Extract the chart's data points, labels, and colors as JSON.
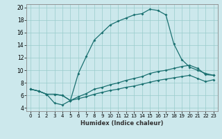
{
  "xlabel": "Humidex (Indice chaleur)",
  "bg_color": "#cce8ec",
  "grid_color": "#99cccc",
  "line_color": "#1a7070",
  "xlim": [
    -0.5,
    23.5
  ],
  "ylim": [
    3.5,
    20.5
  ],
  "xticks": [
    0,
    1,
    2,
    3,
    4,
    5,
    6,
    7,
    8,
    9,
    10,
    11,
    12,
    13,
    14,
    15,
    16,
    17,
    18,
    19,
    20,
    21,
    22,
    23
  ],
  "yticks": [
    4,
    6,
    8,
    10,
    12,
    14,
    16,
    18,
    20
  ],
  "line1_x": [
    0,
    1,
    2,
    3,
    4,
    5,
    6,
    7,
    8,
    9,
    10,
    11,
    12,
    13,
    14,
    15,
    16,
    17,
    18,
    19,
    20,
    21,
    22,
    23
  ],
  "line1_y": [
    7.0,
    6.7,
    6.2,
    4.8,
    4.5,
    5.2,
    9.5,
    12.2,
    14.8,
    16.0,
    17.2,
    17.8,
    18.3,
    18.8,
    19.0,
    19.7,
    19.5,
    18.8,
    14.2,
    11.7,
    10.5,
    10.0,
    9.5,
    9.2
  ],
  "line2_x": [
    0,
    1,
    2,
    3,
    4,
    5,
    6,
    7,
    8,
    9,
    10,
    11,
    12,
    13,
    14,
    15,
    16,
    17,
    18,
    19,
    20,
    21,
    22,
    23
  ],
  "line2_y": [
    7.0,
    6.7,
    6.2,
    6.2,
    6.0,
    5.2,
    5.8,
    6.3,
    7.0,
    7.3,
    7.7,
    8.0,
    8.4,
    8.7,
    9.0,
    9.5,
    9.8,
    10.0,
    10.3,
    10.6,
    10.8,
    10.3,
    9.3,
    9.2
  ],
  "line3_x": [
    0,
    1,
    2,
    3,
    4,
    5,
    6,
    7,
    8,
    9,
    10,
    11,
    12,
    13,
    14,
    15,
    16,
    17,
    18,
    19,
    20,
    21,
    22,
    23
  ],
  "line3_y": [
    7.0,
    6.7,
    6.2,
    6.2,
    6.0,
    5.2,
    5.5,
    5.8,
    6.2,
    6.5,
    6.8,
    7.0,
    7.3,
    7.5,
    7.8,
    8.1,
    8.4,
    8.6,
    8.8,
    9.0,
    9.2,
    8.7,
    8.2,
    8.5
  ]
}
